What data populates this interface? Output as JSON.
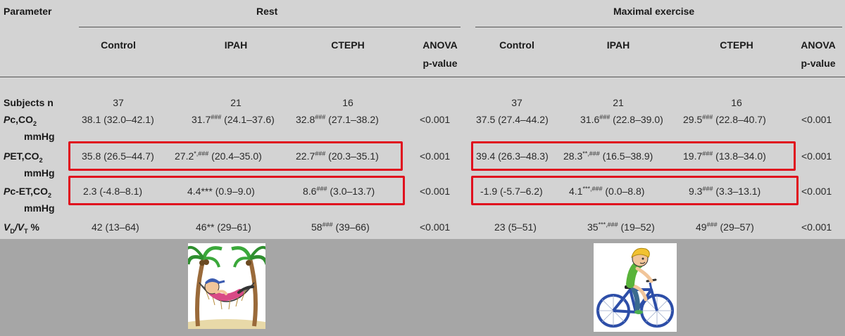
{
  "header": {
    "parameter": "Parameter",
    "rest": "Rest",
    "exercise": "Maximal exercise",
    "cols": [
      "Control",
      "IPAH",
      "CTEPH"
    ],
    "anova1": "ANOVA",
    "anova2": "p-value"
  },
  "rows": {
    "subjects": {
      "label": "Subjects n",
      "rest": [
        "37",
        "21",
        "16"
      ],
      "rest_p": "",
      "ex": [
        "37",
        "21",
        "16"
      ],
      "ex_p": ""
    },
    "pc": {
      "label_main": "P",
      "label_sub": "c,CO",
      "label_sub2": "2",
      "unit": "mmHg",
      "rest": [
        {
          "v": "38.1",
          "sup": "",
          "ci": "(32.0–42.1)"
        },
        {
          "v": "31.7",
          "sup": "###",
          "ci": "(24.1–37.6)"
        },
        {
          "v": "32.8",
          "sup": "###",
          "ci": "(27.1–38.2)"
        }
      ],
      "rest_p": "<0.001",
      "ex": [
        {
          "v": "37.5",
          "sup": "",
          "ci": "(27.4–44.2)"
        },
        {
          "v": "31.6",
          "sup": "###",
          "ci": "(22.8–39.0)"
        },
        {
          "v": "29.5",
          "sup": "###",
          "ci": "(22.8–40.7)"
        }
      ],
      "ex_p": "<0.001"
    },
    "pet": {
      "label_main": "P",
      "label_sub": "ET,CO",
      "label_sub2": "2",
      "unit": "mmHg",
      "rest": [
        {
          "v": "35.8",
          "sup": "",
          "ci": "(26.5–44.7)"
        },
        {
          "v": "27.2",
          "sup": "*,###",
          "ci": "(20.4–35.0)"
        },
        {
          "v": "22.7",
          "sup": "###",
          "ci": "(20.3–35.1)"
        }
      ],
      "rest_p": "<0.001",
      "ex": [
        {
          "v": "39.4",
          "sup": "",
          "ci": "(26.3–48.3)"
        },
        {
          "v": "28.3",
          "sup": "**,###",
          "ci": "(16.5–38.9)"
        },
        {
          "v": "19.7",
          "sup": "###",
          "ci": "(13.8–34.0)"
        }
      ],
      "ex_p": "<0.001"
    },
    "pcet": {
      "label_main": "P",
      "label_sub": "c-ET,CO",
      "label_sub2": "2",
      "unit": "mmHg",
      "rest": [
        {
          "v": "2.3",
          "sup": "",
          "ci": "(-4.8–8.1)"
        },
        {
          "v": "4.4***",
          "sup": "",
          "ci": "(0.9–9.0)"
        },
        {
          "v": "8.6",
          "sup": "###",
          "ci": "(3.0–13.7)"
        }
      ],
      "rest_p": "<0.001",
      "ex": [
        {
          "v": "-1.9",
          "sup": "",
          "ci": "(-5.7–6.2)"
        },
        {
          "v": "4.1",
          "sup": "***,###",
          "ci": "(0.0–8.8)"
        },
        {
          "v": "9.3",
          "sup": "###",
          "ci": "(3.3–13.1)"
        }
      ],
      "ex_p": "<0.001"
    },
    "vdvt": {
      "label_a": "V",
      "label_a_sub": "D",
      "label_b": "/V",
      "label_b_sub": "T",
      "label_c": " %",
      "rest": [
        {
          "v": "42",
          "sup": "",
          "ci": "(13–64)"
        },
        {
          "v": "46**",
          "sup": "",
          "ci": "(29–61)"
        },
        {
          "v": "58",
          "sup": "###",
          "ci": "(39–66)"
        }
      ],
      "rest_p": "<0.001",
      "ex": [
        {
          "v": "23",
          "sup": "",
          "ci": "(5–51)"
        },
        {
          "v": "35",
          "sup": "***,###",
          "ci": "(19–52)"
        },
        {
          "v": "49",
          "sup": "###",
          "ci": "(29–57)"
        }
      ],
      "ex_p": "<0.001"
    }
  },
  "images": {
    "rest_icon": "hammock-rest-illustration",
    "exercise_icon": "cyclist-illustration"
  },
  "colors": {
    "background": "#d3d3d3",
    "bottom_band": "#a6a6a6",
    "highlight": "#e0101e"
  }
}
